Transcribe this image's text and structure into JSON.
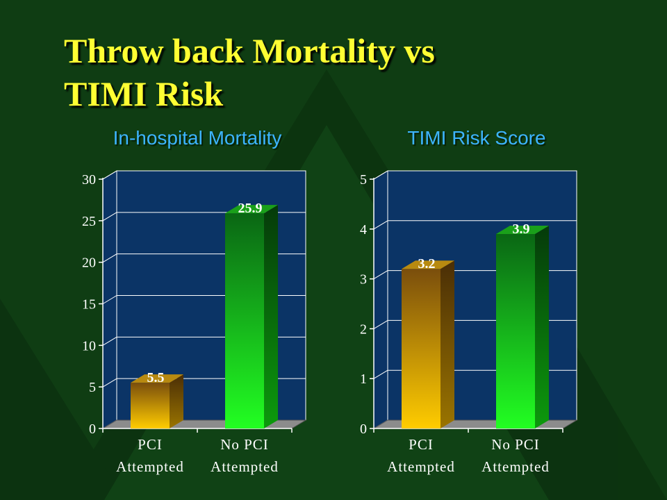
{
  "slide": {
    "title_line1": "Throw back Mortality vs",
    "title_line2": "TIMI Risk"
  },
  "colors": {
    "background": "#0f3d13",
    "title": "#ffff33",
    "caption": "#3db4ff",
    "plot_area": "#0b3466",
    "bar_pci_top": "#8a5a10",
    "bar_pci_bottom": "#ffcc00",
    "bar_nopci_top": "#0a6b14",
    "bar_nopci_bottom": "#22ff22"
  },
  "chart_data": [
    {
      "type": "bar",
      "title": "In-hospital Mortality",
      "categories": [
        [
          "PCI",
          "Attempted"
        ],
        [
          "No PCI",
          "Attempted"
        ]
      ],
      "values": [
        5.5,
        25.9
      ],
      "data_labels": [
        "5.5",
        "25.9"
      ],
      "ylim": [
        0,
        30
      ],
      "yticks": [
        0,
        5,
        10,
        15,
        20,
        25,
        30
      ],
      "grid": true,
      "legend": "none",
      "xlabel": "",
      "ylabel": ""
    },
    {
      "type": "bar",
      "title": "TIMI Risk Score",
      "categories": [
        [
          "PCI",
          "Attempted"
        ],
        [
          "No PCI",
          "Attempted"
        ]
      ],
      "values": [
        3.2,
        3.9
      ],
      "data_labels": [
        "3.2",
        "3.9"
      ],
      "ylim": [
        0,
        5
      ],
      "yticks": [
        0,
        1,
        2,
        3,
        4,
        5
      ],
      "grid": true,
      "legend": "none",
      "xlabel": "",
      "ylabel": ""
    }
  ]
}
